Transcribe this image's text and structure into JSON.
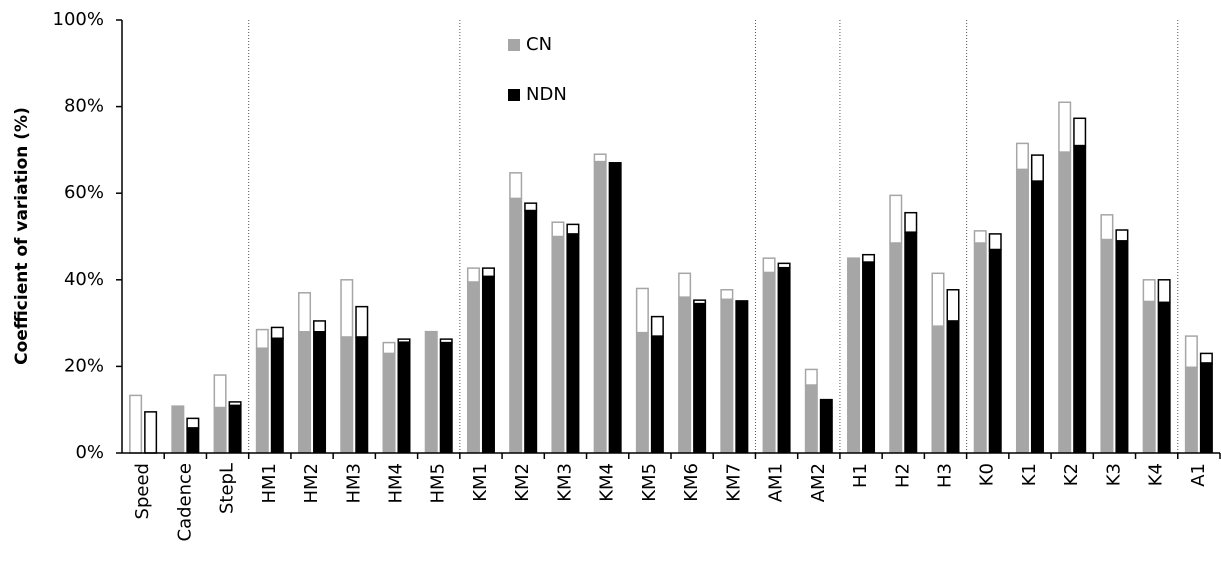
{
  "chart_data": {
    "type": "bar",
    "y_label": "Coefficient of variation (%)",
    "categories": [
      "Speed",
      "Cadence",
      "StepL",
      "HM1",
      "HM2",
      "HM3",
      "HM4",
      "HM5",
      "KM1",
      "KM2",
      "KM3",
      "KM4",
      "KM5",
      "KM6",
      "KM7",
      "AM1",
      "AM2",
      "H1",
      "H2",
      "H3",
      "K0",
      "K1",
      "K2",
      "K3",
      "K4",
      "A1"
    ],
    "series": [
      {
        "name": "CN",
        "color": "#a6a6a6",
        "values": [
          0,
          11,
          10.5,
          24.2,
          28,
          26.8,
          23,
          28.2,
          39.5,
          58.8,
          50,
          67.3,
          27.8,
          36,
          35.5,
          41.7,
          15.7,
          44.7,
          48.5,
          29.3,
          48.5,
          65.5,
          69.5,
          49.3,
          35,
          19.8
        ],
        "extra_values": [
          13.3,
          0,
          7.5,
          4.3,
          9,
          13.2,
          2.5,
          0,
          3.2,
          5.9,
          3.3,
          1.7,
          10.2,
          5.5,
          2.2,
          3.3,
          3.6,
          0.3,
          11,
          12.2,
          2.8,
          6,
          11.5,
          5.7,
          5,
          7.2
        ]
      },
      {
        "name": "NDN",
        "color": "#000000",
        "values": [
          0,
          5.8,
          11,
          26.5,
          28,
          26.8,
          25.6,
          25.5,
          40.8,
          56,
          50.6,
          67.2,
          27,
          34.5,
          35.3,
          42.8,
          12.5,
          44.1,
          51,
          30.5,
          47,
          62.8,
          71,
          49,
          34.8,
          20.8
        ],
        "extra_values": [
          9.5,
          2.2,
          0.8,
          2.5,
          2.5,
          7,
          0.7,
          0.8,
          1.9,
          1.7,
          2.2,
          0,
          4.5,
          0.8,
          0,
          1,
          0,
          1.7,
          4.5,
          7.2,
          3.6,
          6,
          6.3,
          2.5,
          5.2,
          2.2
        ]
      }
    ],
    "group_breaks": [
      2,
      7,
      14,
      16,
      19,
      24
    ],
    "ylim": [
      0,
      100
    ],
    "yticks": [
      {
        "value": 0,
        "label": "0%"
      },
      {
        "value": 20,
        "label": "20%"
      },
      {
        "value": 40,
        "label": "40%"
      },
      {
        "value": 60,
        "label": "60%"
      },
      {
        "value": 80,
        "label": "80%"
      },
      {
        "value": 100,
        "label": "100%"
      }
    ]
  }
}
